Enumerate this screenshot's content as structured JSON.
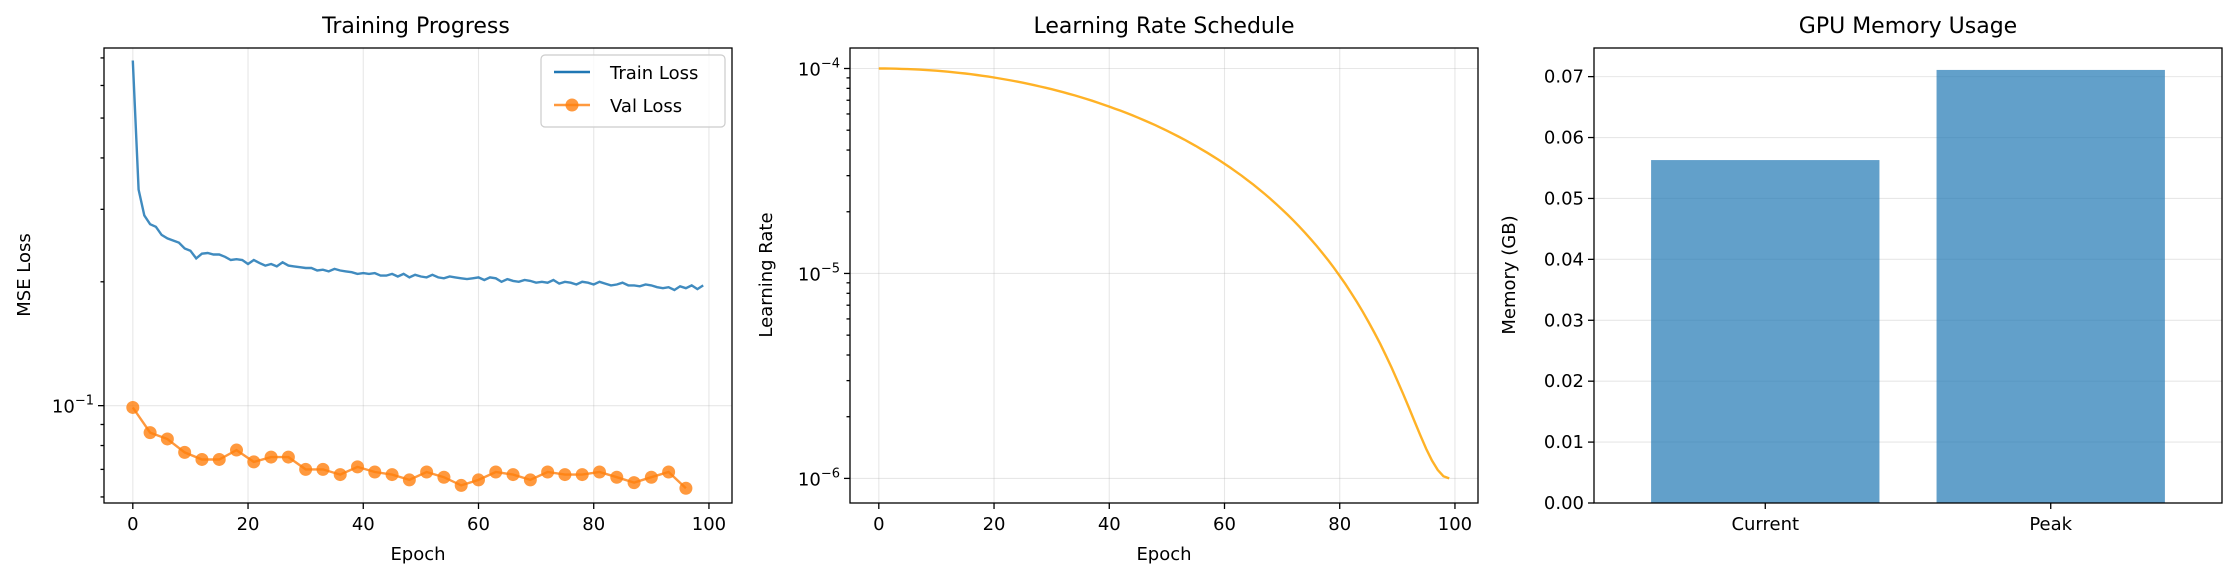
{
  "chart_data": [
    {
      "type": "line",
      "title": "Training Progress",
      "xlabel": "Epoch",
      "ylabel": "MSE Loss",
      "yscale": "log",
      "xlim": [
        -5,
        104
      ],
      "ylim": [
        0.058,
        0.74
      ],
      "xticks": [
        0,
        20,
        40,
        60,
        80,
        100
      ],
      "xtick_labels": [
        "0",
        "20",
        "40",
        "60",
        "80",
        "100"
      ],
      "ytick_major": [
        {
          "value": 0.1,
          "base": "10",
          "exp": "−1"
        }
      ],
      "ytick_minor": [
        0.06,
        0.07,
        0.08,
        0.09,
        0.2,
        0.3,
        0.4,
        0.5,
        0.6,
        0.7
      ],
      "grid": true,
      "legend_position": "top-right",
      "series": [
        {
          "name": "Train Loss",
          "color": "#1f77b4",
          "x": [
            0,
            1,
            2,
            3,
            4,
            5,
            6,
            7,
            8,
            9,
            10,
            11,
            12,
            13,
            14,
            15,
            16,
            17,
            18,
            19,
            20,
            21,
            22,
            23,
            24,
            25,
            26,
            27,
            28,
            29,
            30,
            31,
            32,
            33,
            34,
            35,
            36,
            37,
            38,
            39,
            40,
            41,
            42,
            43,
            44,
            45,
            46,
            47,
            48,
            49,
            50,
            51,
            52,
            53,
            54,
            55,
            56,
            57,
            58,
            59,
            60,
            61,
            62,
            63,
            64,
            65,
            66,
            67,
            68,
            69,
            70,
            71,
            72,
            73,
            74,
            75,
            76,
            77,
            78,
            79,
            80,
            81,
            82,
            83,
            84,
            85,
            86,
            87,
            88,
            89,
            90,
            91,
            92,
            93,
            94,
            95,
            96,
            97,
            98,
            99
          ],
          "values": [
            0.69,
            0.335,
            0.29,
            0.276,
            0.272,
            0.26,
            0.255,
            0.252,
            0.249,
            0.241,
            0.238,
            0.228,
            0.234,
            0.235,
            0.233,
            0.233,
            0.23,
            0.226,
            0.227,
            0.226,
            0.221,
            0.226,
            0.222,
            0.219,
            0.221,
            0.218,
            0.223,
            0.219,
            0.218,
            0.217,
            0.216,
            0.216,
            0.213,
            0.214,
            0.212,
            0.215,
            0.213,
            0.212,
            0.211,
            0.209,
            0.21,
            0.209,
            0.21,
            0.207,
            0.207,
            0.209,
            0.206,
            0.209,
            0.205,
            0.208,
            0.206,
            0.205,
            0.208,
            0.205,
            0.204,
            0.206,
            0.205,
            0.204,
            0.203,
            0.204,
            0.205,
            0.202,
            0.205,
            0.204,
            0.2,
            0.203,
            0.201,
            0.2,
            0.202,
            0.201,
            0.199,
            0.2,
            0.199,
            0.202,
            0.198,
            0.2,
            0.199,
            0.197,
            0.2,
            0.199,
            0.197,
            0.2,
            0.198,
            0.196,
            0.197,
            0.199,
            0.196,
            0.196,
            0.195,
            0.197,
            0.196,
            0.194,
            0.193,
            0.194,
            0.191,
            0.195,
            0.193,
            0.196,
            0.192,
            0.196
          ]
        },
        {
          "name": "Val Loss",
          "color": "#ff7f0e",
          "x": [
            0,
            3,
            6,
            9,
            12,
            15,
            18,
            21,
            24,
            27,
            30,
            33,
            36,
            39,
            42,
            45,
            48,
            51,
            54,
            57,
            60,
            63,
            66,
            69,
            72,
            75,
            78,
            81,
            84,
            87,
            90,
            93,
            96
          ],
          "values": [
            0.099,
            0.086,
            0.083,
            0.077,
            0.074,
            0.074,
            0.078,
            0.073,
            0.075,
            0.075,
            0.07,
            0.07,
            0.068,
            0.071,
            0.069,
            0.068,
            0.066,
            0.069,
            0.067,
            0.064,
            0.066,
            0.069,
            0.068,
            0.066,
            0.069,
            0.068,
            0.068,
            0.069,
            0.067,
            0.065,
            0.067,
            0.069,
            0.063
          ]
        }
      ]
    },
    {
      "type": "line",
      "title": "Learning Rate Schedule",
      "xlabel": "Epoch",
      "ylabel": "Learning Rate",
      "yscale": "log",
      "xlim": [
        -5,
        104
      ],
      "ylim_log10": [
        -6.12,
        -3.9
      ],
      "xticks": [
        0,
        20,
        40,
        60,
        80,
        100
      ],
      "xtick_labels": [
        "0",
        "20",
        "40",
        "60",
        "80",
        "100"
      ],
      "ytick_major": [
        {
          "value": 1e-06,
          "base": "10",
          "exp": "−6"
        },
        {
          "value": 1e-05,
          "base": "10",
          "exp": "−5"
        },
        {
          "value": 0.0001,
          "base": "10",
          "exp": "−4"
        }
      ],
      "grid": true,
      "series": [
        {
          "color": "#ffa500",
          "schedule": "cosine",
          "start_value": 0.0001,
          "end_value": 1e-06,
          "epochs": 100
        }
      ]
    },
    {
      "type": "bar",
      "title": "GPU Memory Usage",
      "xlabel": "",
      "ylabel": "Memory (GB)",
      "categories": [
        "Current",
        "Peak"
      ],
      "values": [
        0.0563,
        0.0711
      ],
      "color": "#1f77b4",
      "ylim": [
        0,
        0.0747
      ],
      "yticks": [
        0,
        0.01,
        0.02,
        0.03,
        0.04,
        0.05,
        0.06,
        0.07
      ],
      "ytick_labels": [
        "0.00",
        "0.01",
        "0.02",
        "0.03",
        "0.04",
        "0.05",
        "0.06",
        "0.07"
      ],
      "grid": "y"
    }
  ]
}
